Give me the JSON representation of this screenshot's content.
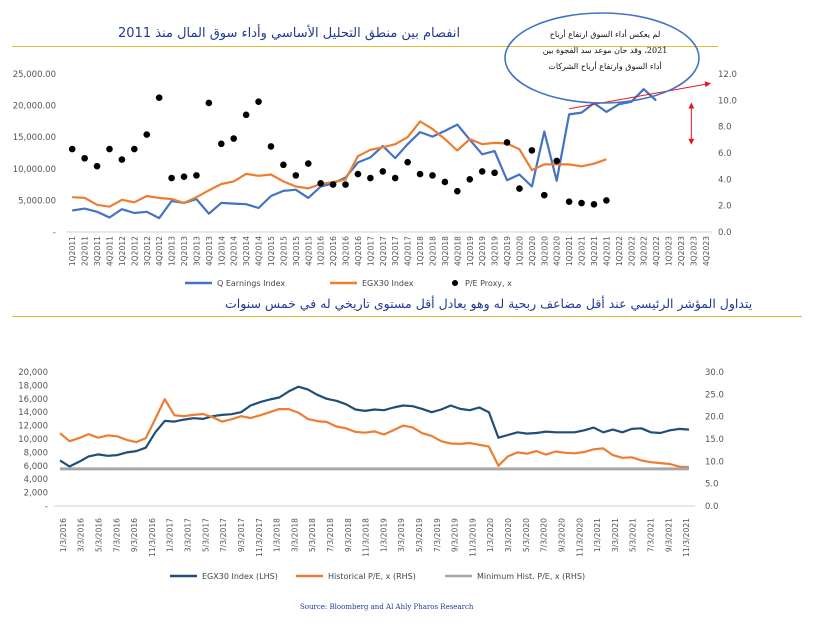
{
  "titles": {
    "top": "انفصام بين منطق التحليل الأساسي وأداء سوق المال منذ 2011",
    "bottom": "يتداول المؤشر الرئيسي عند أقل مضاعف ربحية له وهو يعادل أقل مستوى تاريخي له في خمس سنوات"
  },
  "callout": {
    "line1": "لم يعكس أداء السوق ارتفاع أرباح",
    "line2": "2021، وقد حان موعد سد الفجوة بين",
    "line3": "أداء السوق وارتفاع أرباح الشركات"
  },
  "source": "Source: Bloomberg and Al Ahly Pharos Research",
  "colors": {
    "blue": "#4472c4",
    "orange": "#ed7d31",
    "navy": "#1f4e79",
    "gray": "#a6a6a6",
    "red": "#e31a1c"
  },
  "chart_data": [
    {
      "type": "line",
      "categories": [
        "1Q2011",
        "2Q2011",
        "3Q2011",
        "4Q2011",
        "1Q2012",
        "2Q2012",
        "3Q2012",
        "4Q2012",
        "1Q2013",
        "2Q2013",
        "3Q2013",
        "4Q2013",
        "1Q2014",
        "2Q2014",
        "3Q2014",
        "4Q2014",
        "1Q2015",
        "2Q2015",
        "3Q2015",
        "4Q2015",
        "1Q2016",
        "2Q2016",
        "3Q2016",
        "4Q2016",
        "1Q2017",
        "2Q2017",
        "3Q2017",
        "4Q2017",
        "1Q2018",
        "2Q2018",
        "3Q2018",
        "4Q2018",
        "1Q2019",
        "2Q2019",
        "3Q2019",
        "4Q2019",
        "1Q2020",
        "2Q2020",
        "3Q2020",
        "4Q2020",
        "1Q2021",
        "2Q2021",
        "3Q2021",
        "4Q2021",
        "1Q2022",
        "2Q2022",
        "3Q2022",
        "4Q2022",
        "1Q2023",
        "2Q2023",
        "3Q2023",
        "4Q2023"
      ],
      "y_left_ticks": [
        "-",
        "5,000.00",
        "10,000.00",
        "15,000.00",
        "20,000.00",
        "25,000.00"
      ],
      "y_right_ticks": [
        "0.0",
        "2.0",
        "4.0",
        "6.0",
        "8.0",
        "10.0",
        "12.0"
      ],
      "ylim_left": [
        0,
        25000
      ],
      "ylim_right": [
        0,
        12
      ],
      "series": [
        {
          "name": "Q Earnings Index",
          "axis": "left",
          "style": "line",
          "color": "#4472c4",
          "values": [
            3400,
            3700,
            3200,
            2300,
            3600,
            3000,
            3200,
            2200,
            4900,
            4600,
            5200,
            2900,
            4600,
            4500,
            4400,
            3800,
            5700,
            6500,
            6700,
            5400,
            7200,
            7700,
            8600,
            11000,
            11800,
            13600,
            11700,
            13900,
            15800,
            15100,
            16000,
            17000,
            14600,
            12300,
            12800,
            8200,
            9100,
            7200,
            15900,
            8100,
            18600,
            18900,
            20400,
            19000,
            20200,
            20600,
            22600,
            20800,
            null,
            null,
            null,
            null
          ]
        },
        {
          "name": "EGX30 Index",
          "axis": "left",
          "style": "line",
          "color": "#ed7d31",
          "values": [
            5500,
            5400,
            4300,
            4000,
            5100,
            4700,
            5700,
            5400,
            5200,
            4600,
            5500,
            6600,
            7600,
            8000,
            9200,
            8900,
            9100,
            8000,
            7200,
            6900,
            7600,
            7900,
            8300,
            12000,
            13000,
            13400,
            13900,
            15000,
            17500,
            16300,
            14700,
            12900,
            14700,
            13900,
            14100,
            14000,
            13100,
            9800,
            10700,
            10700,
            10700,
            10400,
            10800,
            11500,
            null,
            null,
            null,
            null,
            null,
            null,
            null,
            null
          ]
        },
        {
          "name": "P/E Proxy, x",
          "axis": "right",
          "style": "dots",
          "color": "#000000",
          "values": [
            6.3,
            5.6,
            5.0,
            6.3,
            5.5,
            6.3,
            7.4,
            10.2,
            4.1,
            4.2,
            4.3,
            9.8,
            6.7,
            7.1,
            8.9,
            9.9,
            6.5,
            5.1,
            4.3,
            5.2,
            3.7,
            3.6,
            3.6,
            4.4,
            4.1,
            4.6,
            4.1,
            5.3,
            4.4,
            4.3,
            3.8,
            3.1,
            4.0,
            4.6,
            4.5,
            6.8,
            3.3,
            6.2,
            2.8,
            5.4,
            2.3,
            2.2,
            2.1,
            2.4,
            null,
            null,
            null,
            null,
            null,
            null,
            null,
            null
          ]
        }
      ]
    },
    {
      "type": "line",
      "x_ticks": [
        "1/3/2016",
        "3/3/2016",
        "5/3/2016",
        "7/3/2016",
        "9/3/2016",
        "11/3/2016",
        "1/3/2017",
        "3/3/2017",
        "5/3/2017",
        "7/3/2017",
        "9/3/2017",
        "11/3/2017",
        "1/3/2018",
        "3/3/2018",
        "5/3/2018",
        "7/3/2018",
        "9/3/2018",
        "11/3/2018",
        "1/3/2019",
        "3/3/2019",
        "5/3/2019",
        "7/3/2019",
        "9/3/2019",
        "11/3/2019",
        "1/3/2020",
        "3/3/2020",
        "5/3/2020",
        "7/3/2020",
        "9/3/2020",
        "11/3/2020",
        "1/3/2021",
        "3/3/2021",
        "5/3/2021",
        "7/3/2021",
        "9/3/2021",
        "11/3/2021"
      ],
      "y_left_ticks": [
        "-",
        "2,000",
        "4,000",
        "6,000",
        "8,000",
        "10,000",
        "12,000",
        "14,000",
        "16,000",
        "18,000",
        "20,000"
      ],
      "y_right_ticks": [
        "0.0",
        "5.0",
        "10.0",
        "15.0",
        "20.0",
        "25.0",
        "30.0"
      ],
      "ylim_left": [
        0,
        20000
      ],
      "ylim_right": [
        0,
        30
      ],
      "series": [
        {
          "name": "EGX30 Index (LHS)",
          "axis": "left",
          "color": "#1f4e79",
          "values": [
            6800,
            5900,
            6600,
            7400,
            7700,
            7500,
            7600,
            8000,
            8200,
            8700,
            11000,
            12700,
            12600,
            12900,
            13100,
            13000,
            13400,
            13600,
            13700,
            14000,
            15000,
            15500,
            15900,
            16200,
            17100,
            17800,
            17400,
            16600,
            16000,
            15700,
            15200,
            14400,
            14200,
            14400,
            14300,
            14700,
            15000,
            14900,
            14500,
            14000,
            14400,
            15000,
            14500,
            14300,
            14700,
            14000,
            10200,
            10600,
            11000,
            10800,
            10900,
            11100,
            11000,
            11000,
            11000,
            11300,
            11700,
            11000,
            11400,
            11000,
            11500,
            11600,
            11000,
            10900,
            11300,
            11500,
            11400
          ]
        },
        {
          "name": "Historical P/E, x (RHS)",
          "axis": "right",
          "color": "#ed7d31",
          "values": [
            16.3,
            14.5,
            15.2,
            16.1,
            15.3,
            15.8,
            15.6,
            14.8,
            14.3,
            15.2,
            19.5,
            23.9,
            20.3,
            20.1,
            20.4,
            20.6,
            19.9,
            18.9,
            19.4,
            20.1,
            19.7,
            20.3,
            21.0,
            21.7,
            21.7,
            20.9,
            19.5,
            19.0,
            18.8,
            17.8,
            17.4,
            16.6,
            16.4,
            16.7,
            16.0,
            17.0,
            18.0,
            17.6,
            16.3,
            15.7,
            14.5,
            14.0,
            13.9,
            14.1,
            13.7,
            13.3,
            9.0,
            11.1,
            12.0,
            11.7,
            12.3,
            11.5,
            12.2,
            11.9,
            11.8,
            12.1,
            12.7,
            12.9,
            11.4,
            10.8,
            10.9,
            10.2,
            9.8,
            9.6,
            9.4,
            8.8,
            8.7
          ]
        },
        {
          "name": "Minimum Hist. P/E, x (RHS)",
          "axis": "right",
          "color": "#a6a6a6",
          "values": [
            8.3,
            8.3
          ]
        }
      ]
    }
  ]
}
